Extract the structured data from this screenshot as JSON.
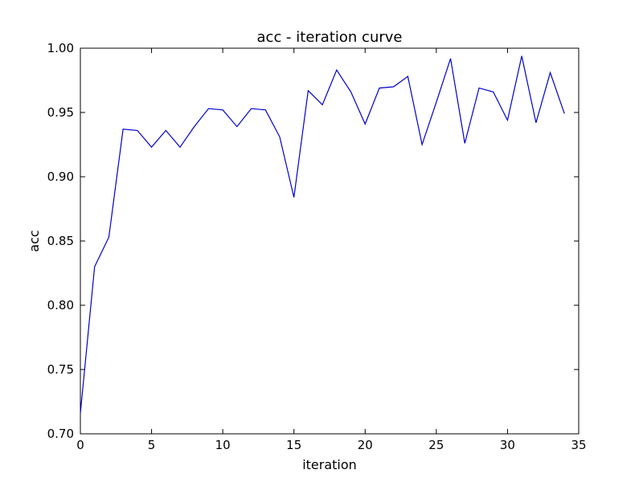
{
  "chart_data": {
    "type": "line",
    "title": "acc - iteration curve",
    "xlabel": "iteration",
    "ylabel": "acc",
    "xlim": [
      0,
      35
    ],
    "ylim": [
      0.7,
      1.0
    ],
    "xticks": [
      0,
      5,
      10,
      15,
      20,
      25,
      30,
      35
    ],
    "xtick_labels": [
      "0",
      "5",
      "10",
      "15",
      "20",
      "25",
      "30",
      "35"
    ],
    "yticks": [
      0.7,
      0.75,
      0.8,
      0.85,
      0.9,
      0.95,
      1.0
    ],
    "ytick_labels": [
      "0.70",
      "0.75",
      "0.80",
      "0.85",
      "0.90",
      "0.95",
      "1.00"
    ],
    "grid": false,
    "line_color": "#0000cc",
    "series": [
      {
        "x": [
          0,
          1,
          2,
          3,
          4,
          5,
          6,
          7,
          8,
          9,
          10,
          11,
          12,
          13,
          14,
          15,
          16,
          17,
          18,
          19,
          20,
          21,
          22,
          23,
          24,
          25,
          26,
          27,
          28,
          29,
          30,
          31,
          32,
          33,
          34
        ],
        "values": [
          0.716,
          0.83,
          0.853,
          0.937,
          0.936,
          0.923,
          0.936,
          0.923,
          0.939,
          0.953,
          0.952,
          0.939,
          0.953,
          0.952,
          0.931,
          0.884,
          0.967,
          0.956,
          0.983,
          0.966,
          0.941,
          0.969,
          0.97,
          0.978,
          0.925,
          0.958,
          0.992,
          0.926,
          0.969,
          0.966,
          0.944,
          0.994,
          0.942,
          0.981,
          0.949
        ]
      }
    ]
  }
}
